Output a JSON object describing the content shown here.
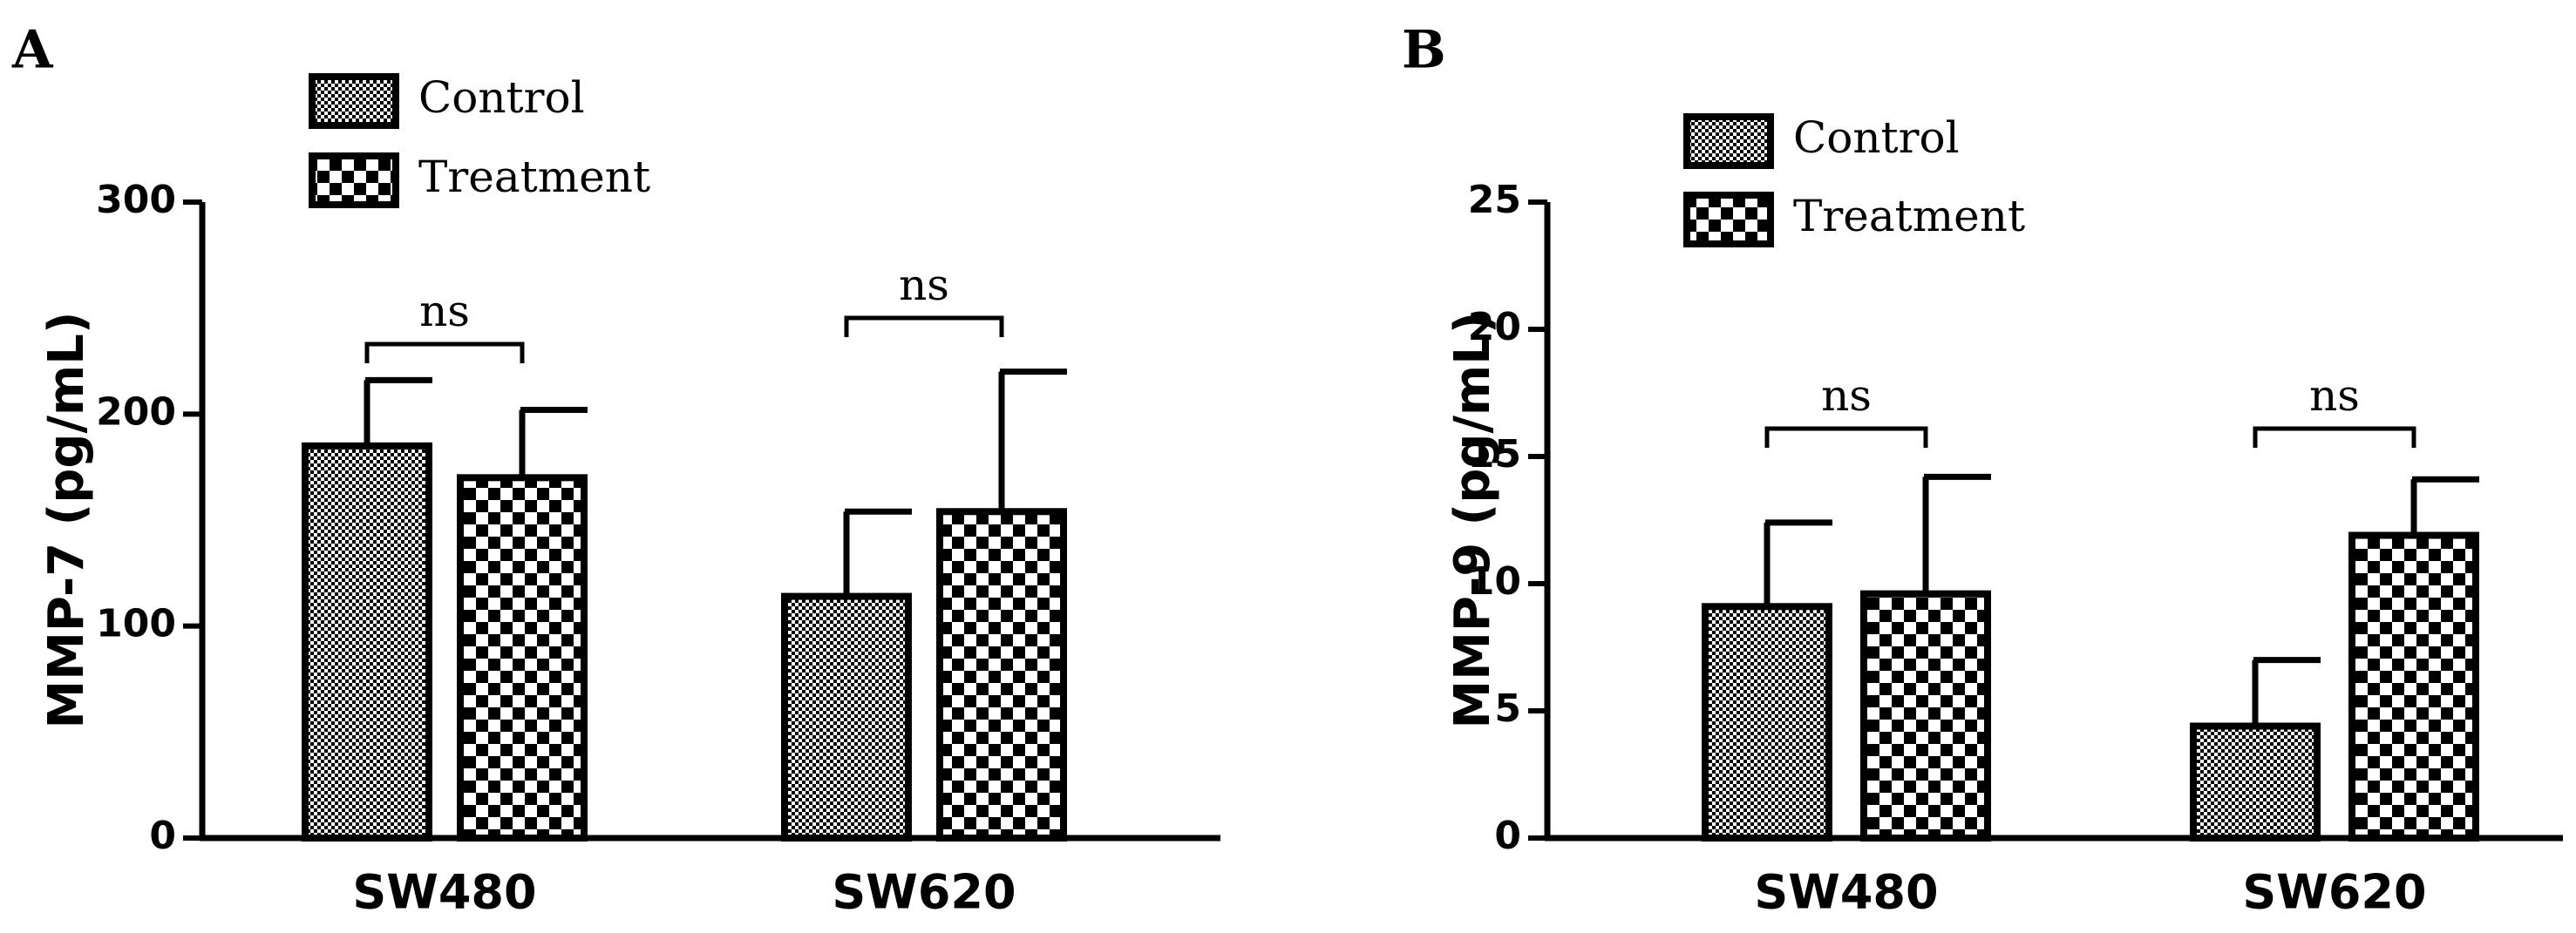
{
  "chart_data": [
    {
      "panel": "A",
      "type": "bar",
      "categories": [
        "SW480",
        "SW620"
      ],
      "series": [
        {
          "name": "Control",
          "values": [
            185,
            114
          ],
          "errors": [
            31,
            40
          ]
        },
        {
          "name": "Treatment",
          "values": [
            170,
            154
          ],
          "errors": [
            32,
            66
          ]
        }
      ],
      "ylabel": "MMP-7 (pg/mL)",
      "xlabel": "",
      "ylim": [
        0,
        300
      ],
      "yticks": [
        0,
        100,
        200,
        300
      ],
      "significance": [
        "ns",
        "ns"
      ],
      "legend_position": "top-left"
    },
    {
      "panel": "B",
      "type": "bar",
      "categories": [
        "SW480",
        "SW620"
      ],
      "series": [
        {
          "name": "Control",
          "values": [
            9.1,
            4.4
          ],
          "errors": [
            3.3,
            2.6
          ]
        },
        {
          "name": "Treatment",
          "values": [
            9.6,
            11.9
          ],
          "errors": [
            4.6,
            2.2
          ]
        }
      ],
      "ylabel": "MMP-9 (pg/mL)",
      "xlabel": "",
      "ylim": [
        0,
        25
      ],
      "yticks": [
        0,
        5,
        10,
        15,
        20,
        25
      ],
      "significance": [
        "ns",
        "ns"
      ],
      "legend_position": "top-left"
    }
  ],
  "colors": {
    "stroke": "#000000",
    "background": "#ffffff",
    "fine_pattern": "#000000",
    "check_pattern": "#000000"
  }
}
